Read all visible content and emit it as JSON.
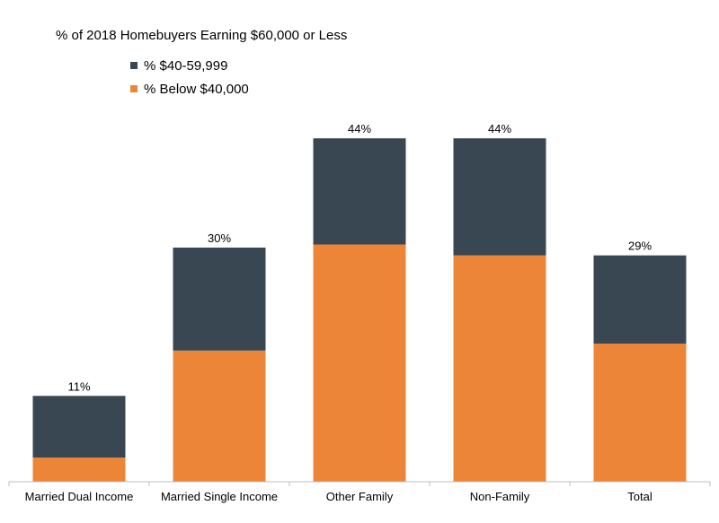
{
  "chart_data": {
    "type": "bar",
    "stacked": true,
    "title": "% of 2018 Homebuyers Earning $60,000 or Less",
    "categories": [
      "Married Dual Income",
      "Married Single Income",
      "Other Family",
      "Non-Family",
      "Total"
    ],
    "series": [
      {
        "name": "% Below $40,000",
        "color": "#ED8539",
        "values": [
          3.1,
          16.8,
          30.4,
          29.0,
          17.7
        ]
      },
      {
        "name": "% $40-59,999",
        "color": "#394753",
        "values": [
          7.9,
          13.2,
          13.6,
          15.0,
          11.3
        ]
      }
    ],
    "totals": [
      11,
      30,
      44,
      44,
      29
    ],
    "total_labels": [
      "11%",
      "30%",
      "44%",
      "44%",
      "29%"
    ],
    "legend": {
      "position": "top-left",
      "items": [
        {
          "label": "% $40-59,999",
          "color": "#394753"
        },
        {
          "label": "% Below $40,000",
          "color": "#ED8539"
        }
      ]
    },
    "xlabel": "",
    "ylabel": "",
    "ylim": [
      0,
      50
    ],
    "grid": false
  }
}
